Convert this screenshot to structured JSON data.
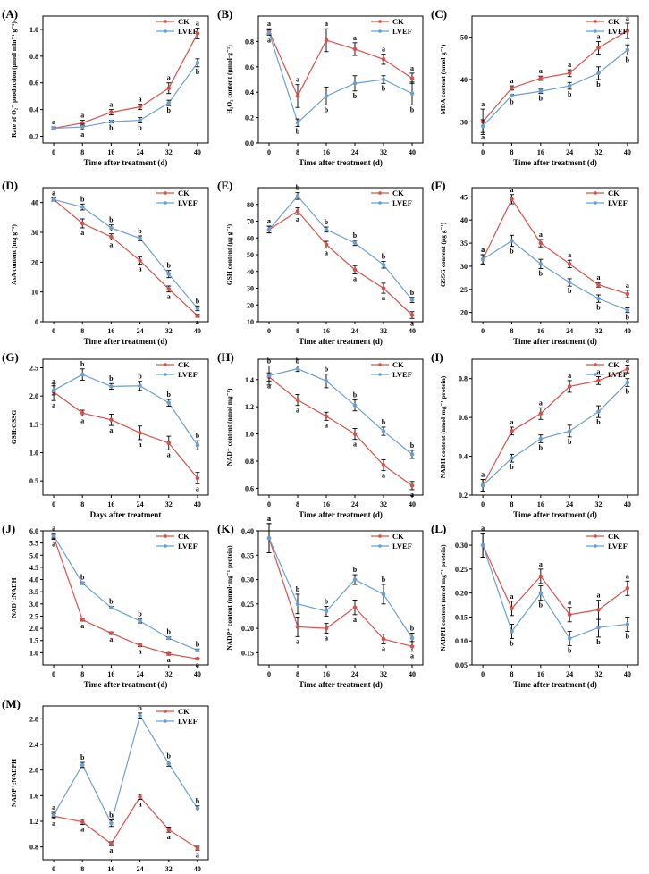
{
  "colors": {
    "ck": "#d9504a",
    "lvef": "#6c9fcf",
    "axis": "#000000"
  },
  "legend": [
    "CK",
    "LVEF"
  ],
  "chart_data": [
    {
      "id": "A",
      "label": "(A)",
      "type": "line",
      "title": "",
      "xlabel": "Time after treatment (d)",
      "ylabel": "Rate of O₂⁻ production (μmol min⁻¹ g⁻¹)",
      "x": [
        0,
        8,
        16,
        24,
        32,
        40
      ],
      "ylim": [
        0.15,
        1.1
      ],
      "yticks": [
        0.2,
        0.4,
        0.6,
        0.8,
        1.0
      ],
      "yticklabels": [
        "0.2",
        "0.4",
        "0.6",
        "0.8",
        "1.0"
      ],
      "series": [
        {
          "name": "CK",
          "values": [
            0.26,
            0.3,
            0.38,
            0.42,
            0.56,
            0.97
          ],
          "err": [
            0.01,
            0.02,
            0.02,
            0.02,
            0.04,
            0.04
          ],
          "sig": [
            "",
            "a",
            "a",
            "a",
            "a",
            "a"
          ]
        },
        {
          "name": "LVEF",
          "values": [
            0.26,
            0.27,
            0.31,
            0.32,
            0.45,
            0.75
          ],
          "err": [
            0.01,
            0.02,
            0.01,
            0.02,
            0.02,
            0.03
          ],
          "sig": [
            "a",
            "a",
            "b",
            "b",
            "b",
            "b"
          ]
        }
      ]
    },
    {
      "id": "B",
      "label": "(B)",
      "type": "line",
      "title": "",
      "xlabel": "Time after treatment (d)",
      "ylabel": "H₂O₂ content (μmol·g⁻¹)",
      "x": [
        0,
        8,
        16,
        24,
        32,
        40
      ],
      "ylim": [
        0.0,
        1.0
      ],
      "yticks": [
        0.0,
        0.2,
        0.4,
        0.6,
        0.8
      ],
      "yticklabels": [
        "0.0",
        "0.2",
        "0.4",
        "0.6",
        "0.8"
      ],
      "series": [
        {
          "name": "CK",
          "values": [
            0.88,
            0.37,
            0.81,
            0.74,
            0.66,
            0.51
          ],
          "err": [
            0.02,
            0.09,
            0.09,
            0.05,
            0.04,
            0.04
          ],
          "sig": [
            "a",
            "a",
            "a",
            "a",
            "a",
            "a"
          ]
        },
        {
          "name": "LVEF",
          "values": [
            0.87,
            0.16,
            0.37,
            0.47,
            0.5,
            0.39
          ],
          "err": [
            0.02,
            0.03,
            0.07,
            0.06,
            0.03,
            0.09
          ],
          "sig": [
            "a",
            "b",
            "b",
            "b",
            "b",
            "b"
          ]
        }
      ]
    },
    {
      "id": "C",
      "label": "(C)",
      "type": "line",
      "title": "",
      "xlabel": "Time after treatment (d)",
      "ylabel": "MDA content (nmol·g⁻¹)",
      "x": [
        0,
        8,
        16,
        24,
        32,
        40
      ],
      "ylim": [
        25,
        55
      ],
      "yticks": [
        30,
        40,
        50
      ],
      "yticklabels": [
        "30",
        "40",
        "50"
      ],
      "series": [
        {
          "name": "CK",
          "values": [
            30.0,
            38.0,
            40.3,
            41.5,
            47.5,
            51.5
          ],
          "err": [
            3.0,
            0.5,
            0.5,
            0.8,
            1.5,
            1.8
          ],
          "sig": [
            "a",
            "a",
            "a",
            "a",
            "a",
            "a"
          ]
        },
        {
          "name": "LVEF",
          "values": [
            29.0,
            36.2,
            37.2,
            38.5,
            41.5,
            47.0
          ],
          "err": [
            1.5,
            0.3,
            0.5,
            0.8,
            1.5,
            1.2
          ],
          "sig": [
            "a",
            "b",
            "b",
            "b",
            "b",
            "b"
          ]
        }
      ]
    },
    {
      "id": "D",
      "label": "(D)",
      "type": "line",
      "title": "",
      "xlabel": "Time after treatment (d)",
      "ylabel": "AsA content (mg g⁻¹)",
      "x": [
        0,
        8,
        16,
        24,
        32,
        40
      ],
      "ylim": [
        0,
        45
      ],
      "yticks": [
        0,
        10,
        20,
        30,
        40
      ],
      "yticklabels": [
        "0",
        "10",
        "20",
        "30",
        "40"
      ],
      "series": [
        {
          "name": "CK",
          "values": [
            41.0,
            33.0,
            28.5,
            20.5,
            11.0,
            2.0
          ],
          "err": [
            0.5,
            1.5,
            1.0,
            1.2,
            1.0,
            0.5
          ],
          "sig": [
            "a",
            "a",
            "a",
            "a",
            "a",
            "a"
          ]
        },
        {
          "name": "LVEF",
          "values": [
            41.0,
            38.5,
            31.5,
            28.0,
            16.0,
            4.5
          ],
          "err": [
            0.5,
            1.0,
            1.0,
            0.8,
            1.2,
            0.8
          ],
          "sig": [
            "a",
            "b",
            "b",
            "b",
            "b",
            "b"
          ]
        }
      ]
    },
    {
      "id": "E",
      "label": "(E)",
      "type": "line",
      "title": "",
      "xlabel": "Time after treatment (d)",
      "ylabel": "GSH content (μg g⁻¹)",
      "x": [
        0,
        8,
        16,
        24,
        32,
        40
      ],
      "ylim": [
        10,
        90
      ],
      "yticks": [
        10,
        20,
        30,
        40,
        50,
        60,
        70,
        80
      ],
      "yticklabels": [
        "10",
        "20",
        "30",
        "40",
        "50",
        "60",
        "70",
        "80"
      ],
      "series": [
        {
          "name": "CK",
          "values": [
            65.0,
            76.0,
            56.0,
            41.0,
            30.0,
            14.0
          ],
          "err": [
            2.0,
            2.0,
            2.0,
            2.5,
            3.0,
            2.0
          ],
          "sig": [
            "a",
            "a",
            "a",
            "a",
            "a",
            "a"
          ]
        },
        {
          "name": "LVEF",
          "values": [
            65.0,
            85.0,
            65.0,
            57.0,
            44.0,
            23.0
          ],
          "err": [
            2.0,
            2.0,
            1.5,
            1.5,
            2.0,
            1.5
          ],
          "sig": [
            "a",
            "b",
            "b",
            "b",
            "b",
            "b"
          ]
        }
      ]
    },
    {
      "id": "F",
      "label": "(F)",
      "type": "line",
      "title": "",
      "xlabel": "Time after treatment (d)",
      "ylabel": "GSSG content (μg g⁻¹)",
      "x": [
        0,
        8,
        16,
        24,
        32,
        40
      ],
      "ylim": [
        18,
        47
      ],
      "yticks": [
        20,
        25,
        30,
        35,
        40,
        45
      ],
      "yticklabels": [
        "20",
        "25",
        "30",
        "35",
        "40",
        "45"
      ],
      "series": [
        {
          "name": "CK",
          "values": [
            31.5,
            44.5,
            35.0,
            30.5,
            26.0,
            24.0
          ],
          "err": [
            1.0,
            1.0,
            0.8,
            0.8,
            0.5,
            0.8
          ],
          "sig": [
            "a",
            "a",
            "a",
            "a",
            "a",
            "a"
          ]
        },
        {
          "name": "LVEF",
          "values": [
            31.5,
            35.5,
            30.5,
            26.5,
            23.0,
            20.5
          ],
          "err": [
            1.0,
            1.2,
            1.0,
            0.8,
            0.8,
            0.5
          ],
          "sig": [
            "a",
            "b",
            "b",
            "b",
            "b",
            "b"
          ]
        }
      ]
    },
    {
      "id": "G",
      "label": "(G)",
      "type": "line",
      "title": "",
      "xlabel": "Days after treatment",
      "ylabel": "GSH:GSSG",
      "x": [
        0,
        8,
        16,
        24,
        32,
        40
      ],
      "ylim": [
        0.25,
        2.65
      ],
      "yticks": [
        0.5,
        1.0,
        1.5,
        2.0,
        2.5
      ],
      "yticklabels": [
        "0.5",
        "1.0",
        "1.5",
        "2.0",
        "2.5"
      ],
      "series": [
        {
          "name": "CK",
          "values": [
            2.07,
            1.7,
            1.58,
            1.35,
            1.17,
            0.55
          ],
          "err": [
            0.15,
            0.05,
            0.1,
            0.12,
            0.12,
            0.1
          ],
          "sig": [
            "a",
            "a",
            "a",
            "a",
            "a",
            "a"
          ]
        },
        {
          "name": "LVEF",
          "values": [
            2.1,
            2.38,
            2.17,
            2.18,
            1.88,
            1.13
          ],
          "err": [
            0.08,
            0.1,
            0.05,
            0.08,
            0.06,
            0.08
          ],
          "sig": [
            "a",
            "b",
            "b",
            "b",
            "b",
            "b"
          ]
        }
      ]
    },
    {
      "id": "H",
      "label": "(H)",
      "type": "line",
      "title": "",
      "xlabel": "Time after treatment (d)",
      "ylabel": "NAD⁺ content (nmol mg⁻¹)",
      "x": [
        0,
        8,
        16,
        24,
        32,
        40
      ],
      "ylim": [
        0.55,
        1.55
      ],
      "yticks": [
        0.6,
        0.8,
        1.0,
        1.2,
        1.4
      ],
      "yticklabels": [
        "0.6",
        "0.8",
        "1.0",
        "1.2",
        "1.4"
      ],
      "series": [
        {
          "name": "CK",
          "values": [
            1.42,
            1.25,
            1.13,
            1.0,
            0.77,
            0.62
          ],
          "err": [
            0.03,
            0.04,
            0.03,
            0.04,
            0.04,
            0.03
          ],
          "sig": [
            "a",
            "a",
            "a",
            "a",
            "a",
            "a"
          ]
        },
        {
          "name": "LVEF",
          "values": [
            1.43,
            1.48,
            1.39,
            1.21,
            1.02,
            0.85
          ],
          "err": [
            0.07,
            0.02,
            0.05,
            0.04,
            0.03,
            0.03
          ],
          "sig": [
            "b",
            "b",
            "b",
            "b",
            "b",
            "b"
          ]
        }
      ]
    },
    {
      "id": "I",
      "label": "(I)",
      "type": "line",
      "title": "",
      "xlabel": "Time after treatment (d)",
      "ylabel": "NADH content (nmol·mg⁻¹ protein)",
      "x": [
        0,
        8,
        16,
        24,
        32,
        40
      ],
      "ylim": [
        0.2,
        0.9
      ],
      "yticks": [
        0.2,
        0.4,
        0.6,
        0.8
      ],
      "yticklabels": [
        "0.2",
        "0.4",
        "0.6",
        "0.8"
      ],
      "series": [
        {
          "name": "CK",
          "values": [
            0.25,
            0.53,
            0.62,
            0.76,
            0.79,
            0.85
          ],
          "err": [
            0.03,
            0.02,
            0.03,
            0.03,
            0.02,
            0.02
          ],
          "sig": [
            "a",
            "a",
            "a",
            "a",
            "a",
            "a"
          ]
        },
        {
          "name": "LVEF",
          "values": [
            0.25,
            0.39,
            0.49,
            0.53,
            0.63,
            0.78
          ],
          "err": [
            0.03,
            0.02,
            0.02,
            0.03,
            0.03,
            0.02
          ],
          "sig": [
            "a",
            "b",
            "b",
            "b",
            "b",
            "b"
          ]
        }
      ]
    },
    {
      "id": "J",
      "label": "(J)",
      "type": "line",
      "title": "",
      "xlabel": "Time after treatment (d)",
      "ylabel": "NAD⁺:NADH",
      "x": [
        0,
        8,
        16,
        24,
        32,
        40
      ],
      "ylim": [
        0.5,
        6.0
      ],
      "yticks": [
        1.0,
        1.5,
        2.0,
        2.5,
        3.0,
        3.5,
        4.0,
        4.5,
        5.0,
        5.5,
        6.0
      ],
      "yticklabels": [
        "1.0",
        "1.5",
        "2.0",
        "2.5",
        "3.0",
        "3.5",
        "4.0",
        "4.5",
        "5.0",
        "5.5",
        "6.0"
      ],
      "series": [
        {
          "name": "CK",
          "values": [
            5.75,
            2.35,
            1.8,
            1.3,
            0.95,
            0.75
          ],
          "err": [
            0.1,
            0.05,
            0.05,
            0.05,
            0.05,
            0.04
          ],
          "sig": [
            "a",
            "a",
            "a",
            "a",
            "a",
            "a"
          ]
        },
        {
          "name": "LVEF",
          "values": [
            5.8,
            3.85,
            2.85,
            2.3,
            1.6,
            1.1
          ],
          "err": [
            0.1,
            0.05,
            0.05,
            0.08,
            0.05,
            0.05
          ],
          "sig": [
            "a",
            "b",
            "b",
            "b",
            "b",
            "b"
          ]
        }
      ]
    },
    {
      "id": "K",
      "label": "(K)",
      "type": "line",
      "title": "",
      "xlabel": "Time after treatment (d)",
      "ylabel": "NADP⁺ content (nmol·mg⁻¹ protein)",
      "x": [
        0,
        8,
        16,
        24,
        32,
        40
      ],
      "ylim": [
        0.125,
        0.4
      ],
      "yticks": [
        0.15,
        0.2,
        0.25,
        0.3,
        0.35,
        0.4
      ],
      "yticklabels": [
        "0.15",
        "0.20",
        "0.25",
        "0.30",
        "0.35",
        "0.40"
      ],
      "series": [
        {
          "name": "CK",
          "values": [
            0.385,
            0.203,
            0.2,
            0.243,
            0.178,
            0.163
          ],
          "err": [
            0.03,
            0.02,
            0.01,
            0.015,
            0.01,
            0.01
          ],
          "sig": [
            "a",
            "a",
            "a",
            "a",
            "a",
            "a"
          ]
        },
        {
          "name": "LVEF",
          "values": [
            0.385,
            0.25,
            0.235,
            0.3,
            0.27,
            0.18
          ],
          "err": [
            0.03,
            0.02,
            0.01,
            0.01,
            0.02,
            0.01
          ],
          "sig": [
            "a",
            "b",
            "b",
            "b",
            "b",
            "b"
          ]
        }
      ]
    },
    {
      "id": "L",
      "label": "(L)",
      "type": "line",
      "title": "",
      "xlabel": "Time after treatment (d)",
      "ylabel": "NADPH content (nmol·mg⁻¹ protein)",
      "x": [
        0,
        8,
        16,
        24,
        32,
        40
      ],
      "ylim": [
        0.05,
        0.33
      ],
      "yticks": [
        0.05,
        0.1,
        0.15,
        0.2,
        0.25,
        0.3
      ],
      "yticklabels": [
        "0.05",
        "0.10",
        "0.15",
        "0.20",
        "0.25",
        "0.30"
      ],
      "series": [
        {
          "name": "CK",
          "values": [
            0.3,
            0.168,
            0.235,
            0.155,
            0.165,
            0.21
          ],
          "err": [
            0.025,
            0.015,
            0.015,
            0.015,
            0.02,
            0.015
          ],
          "sig": [
            "a",
            "a",
            "a",
            "a",
            "a",
            "a"
          ]
        },
        {
          "name": "LVEF",
          "values": [
            0.3,
            0.12,
            0.2,
            0.105,
            0.128,
            0.135
          ],
          "err": [
            0.025,
            0.015,
            0.015,
            0.015,
            0.02,
            0.015
          ],
          "sig": [
            "",
            "b",
            "b",
            "b",
            "b",
            "b"
          ]
        }
      ]
    },
    {
      "id": "M",
      "label": "(M)",
      "type": "line",
      "title": "",
      "xlabel": "Time after treatment (d)",
      "ylabel": "NADP⁺:NADPH",
      "x": [
        0,
        8,
        16,
        24,
        32,
        40
      ],
      "ylim": [
        0.6,
        3.0
      ],
      "yticks": [
        0.8,
        1.2,
        1.6,
        2.0,
        2.4,
        2.8
      ],
      "yticklabels": [
        "0.8",
        "1.2",
        "1.6",
        "2.0",
        "2.4",
        "2.8"
      ],
      "series": [
        {
          "name": "CK",
          "values": [
            1.28,
            1.19,
            0.85,
            1.58,
            1.07,
            0.78
          ],
          "err": [
            0.04,
            0.04,
            0.03,
            0.04,
            0.04,
            0.03
          ],
          "sig": [
            "a",
            "a",
            "a",
            "a",
            "a",
            "a"
          ]
        },
        {
          "name": "LVEF",
          "values": [
            1.3,
            2.08,
            1.17,
            2.85,
            2.1,
            1.4
          ],
          "err": [
            0.04,
            0.04,
            0.05,
            0.04,
            0.04,
            0.04
          ],
          "sig": [
            "a",
            "b",
            "b",
            "b",
            "b",
            "b"
          ]
        }
      ]
    }
  ]
}
